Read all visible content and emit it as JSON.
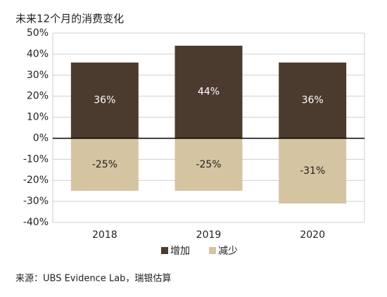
{
  "chart_data": {
    "type": "bar",
    "title": "未来12个月的消费变化",
    "categories": [
      "2018",
      "2019",
      "2020"
    ],
    "series": [
      {
        "name": "增加",
        "color": "#4b3b2f",
        "values": [
          36,
          44,
          36
        ],
        "value_labels": [
          "36%",
          "44%",
          "36%"
        ]
      },
      {
        "name": "减少",
        "color": "#d5c4a1",
        "values": [
          -25,
          -25,
          -31
        ],
        "value_labels": [
          "-25%",
          "-25%",
          "-31%"
        ]
      }
    ],
    "ylim": [
      -40,
      50
    ],
    "yticks": [
      {
        "value": -40,
        "label": "-40%"
      },
      {
        "value": -30,
        "label": "-30%"
      },
      {
        "value": -20,
        "label": "-20%"
      },
      {
        "value": -10,
        "label": "-10%"
      },
      {
        "value": 0,
        "label": "0%"
      },
      {
        "value": 10,
        "label": "10%"
      },
      {
        "value": 20,
        "label": "20%"
      },
      {
        "value": 30,
        "label": "30%"
      },
      {
        "value": 40,
        "label": "40%"
      },
      {
        "value": 50,
        "label": "50%"
      }
    ],
    "grid": true,
    "legend": "bottom",
    "source": "来源：UBS Evidence Lab，瑞银估算"
  }
}
